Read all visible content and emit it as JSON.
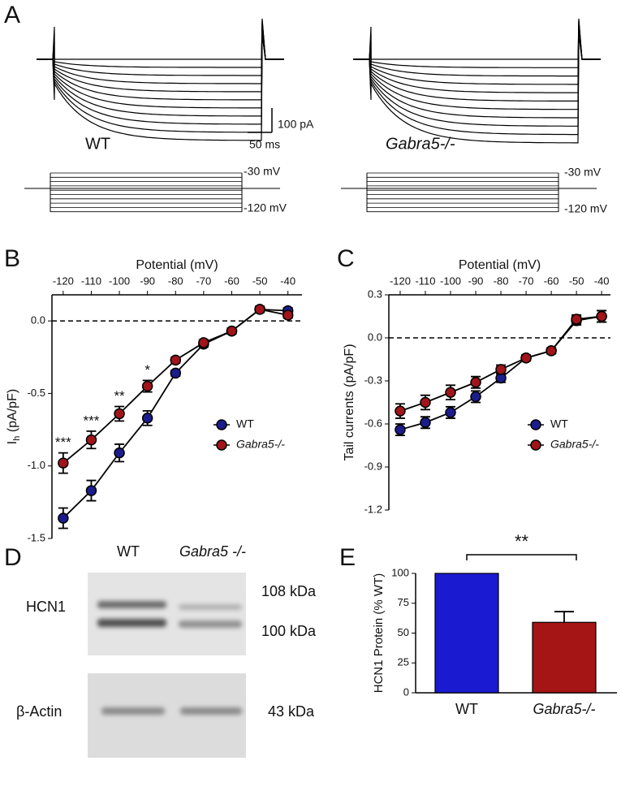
{
  "panel_a": {
    "letter": "A",
    "scale_current": "100 pA",
    "scale_time": "50 ms",
    "label_left": "WT",
    "label_right": "Gabra5-/-",
    "step_top": "-30 mV",
    "step_bottom": "-120 mV"
  },
  "panel_d": {
    "letter": "D",
    "lane_1": "WT",
    "lane_2": "Gabra5 -/-",
    "band_label": "HCN1",
    "size_top": "108 kDa",
    "size_bottom": "100 kDa",
    "control_label": "β-Actin",
    "control_size": "43 kDa"
  },
  "chart_data": [
    {
      "type": "line",
      "panel": "B",
      "xlabel": "Potential (mV)",
      "ylabel": [
        "I",
        "h",
        " (pA/pF)"
      ],
      "x": [
        -120,
        -110,
        -100,
        -90,
        -80,
        -70,
        -60,
        -50,
        -40
      ],
      "xlim": [
        -124,
        -35
      ],
      "xticks": [
        -120,
        -110,
        -100,
        -90,
        -80,
        -70,
        -60,
        -50,
        -40
      ],
      "ylim": [
        -1.5,
        0.18
      ],
      "yticks": [
        -1.5,
        {
          "value": -1.0,
          "label": "-1.0"
        },
        -0.5,
        {
          "value": 0,
          "label": "0.0"
        }
      ],
      "zero_line": true,
      "series": [
        {
          "name": "WT",
          "color": "#1c1c8c",
          "values": [
            -1.36,
            -1.17,
            -0.91,
            -0.67,
            -0.36,
            -0.16,
            -0.07,
            0.08,
            0.07
          ],
          "errors": [
            0.07,
            0.07,
            0.06,
            0.05,
            0.02,
            0.02,
            0.02,
            0.02,
            0.02
          ]
        },
        {
          "name": "Gabra5-/-",
          "color": "#a0141a",
          "values": [
            -0.98,
            -0.82,
            -0.64,
            -0.45,
            -0.27,
            -0.15,
            -0.07,
            0.08,
            0.04
          ],
          "errors": [
            0.07,
            0.06,
            0.05,
            0.04,
            0.02,
            0.02,
            0.02,
            0.02,
            0.02
          ]
        }
      ],
      "annotations": [
        "***",
        "***",
        "**",
        "*",
        null,
        null,
        null,
        null,
        null
      ]
    },
    {
      "type": "line",
      "panel": "C",
      "xlabel": "Potential (mV)",
      "ylabel": [
        "Tail currents (pA/pF)"
      ],
      "x": [
        -120,
        -110,
        -100,
        -90,
        -80,
        -70,
        -60,
        -50,
        -40
      ],
      "xlim": [
        -124.5,
        -36.5
      ],
      "xticks": [
        -120,
        -110,
        -100,
        -90,
        -80,
        -70,
        -60,
        -50,
        -40
      ],
      "ylim": [
        -1.2,
        0.3
      ],
      "yticks": [
        {
          "value": -1.2,
          "label": "-1.2"
        },
        {
          "value": -0.9,
          "label": "-0.9"
        },
        {
          "value": -0.6,
          "label": "-0.6"
        },
        {
          "value": -0.3,
          "label": "-0.3"
        },
        {
          "value": 0,
          "label": "0.0"
        },
        {
          "value": 0.3,
          "label": "0.3"
        }
      ],
      "zero_line": true,
      "series": [
        {
          "name": "WT",
          "color": "#1c1c8c",
          "values": [
            -0.64,
            -0.59,
            -0.52,
            -0.41,
            -0.28,
            -0.14,
            -0.09,
            0.12,
            0.15
          ],
          "errors": [
            0.04,
            0.04,
            0.04,
            0.04,
            0.03,
            0.02,
            0.02,
            0.03,
            0.04
          ]
        },
        {
          "name": "Gabra5-/-",
          "color": "#a0141a",
          "values": [
            -0.51,
            -0.45,
            -0.38,
            -0.31,
            -0.22,
            -0.14,
            -0.09,
            0.13,
            0.15
          ],
          "errors": [
            0.05,
            0.05,
            0.05,
            0.04,
            0.03,
            0.02,
            0.02,
            0.03,
            0.04
          ]
        }
      ]
    },
    {
      "type": "bar",
      "panel": "E",
      "ylabel": "HCN1 Protein (% WT)",
      "categories": [
        "WT",
        "Gabra5-/-"
      ],
      "values": [
        100,
        59
      ],
      "errors": [
        0,
        9
      ],
      "colors": [
        "#1a1ad0",
        "#a51515"
      ],
      "ylim": [
        0,
        100
      ],
      "yticks": [
        0,
        25,
        50,
        75,
        100
      ],
      "annotation": "**"
    }
  ]
}
